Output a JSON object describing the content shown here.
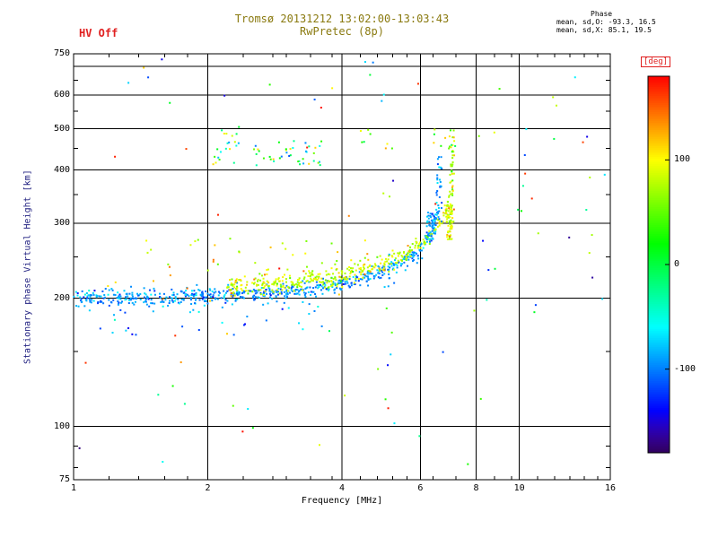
{
  "title": {
    "line1": "Tromsø 20131212 13:02:00-13:03:43",
    "line2": "RwPretec (8p)"
  },
  "hv_status": "HV Off",
  "phase_stats": {
    "header": "Phase",
    "line_o": "mean, sd,O: -93.3, 16.5",
    "line_x": "mean, sd,X:  85.1, 19.5"
  },
  "axes": {
    "x_label": "Frequency [MHz]",
    "y_label": "Stationary phase Virtual Height [km]",
    "x_scale": "log2",
    "y_scale": "log10",
    "x_range": [
      1,
      16
    ],
    "y_range": [
      75,
      750
    ],
    "x_ticks": [
      1,
      2,
      4,
      6,
      8,
      10,
      16
    ],
    "x_grid": [
      2,
      4,
      6,
      8,
      10
    ],
    "x_minor": [
      1.2,
      1.4,
      1.6,
      1.8,
      2.4,
      2.8,
      3,
      3.4,
      3.8,
      4.4,
      4.8,
      5.2,
      5.6,
      6.4,
      7.2,
      8.8,
      9.6,
      11,
      12,
      13,
      14,
      15
    ],
    "y_ticks": [
      750,
      600,
      500,
      400,
      300,
      200,
      100,
      75
    ],
    "y_grid": [
      100,
      200,
      300,
      400,
      500,
      600,
      700
    ],
    "y_minor": [
      80,
      90,
      150,
      250,
      350,
      450,
      550,
      650
    ]
  },
  "colorbar": {
    "label": "[deg]",
    "ticks": [
      100,
      0,
      -100
    ],
    "range": [
      -180,
      180
    ]
  },
  "colors": {
    "title": "#8a7a10",
    "hv": "#e02020",
    "ylabel": "#202080",
    "deg": "#e02020",
    "axis": "#000000",
    "background": "#ffffff"
  },
  "chart_data": {
    "type": "scatter",
    "title": "Tromsø 20131212 13:02:00-13:03:43 / RwPretec (8p)",
    "xlabel": "Frequency [MHz]",
    "ylabel": "Stationary phase Virtual Height [km]",
    "xlim": [
      1,
      16
    ],
    "ylim": [
      75,
      750
    ],
    "color_variable": "phase [deg]",
    "color_range": [
      -180,
      180
    ],
    "seed": 20131212,
    "clusters": [
      {
        "name": "O-trace",
        "type": "band",
        "curve": [
          [
            1.0,
            200
          ],
          [
            1.5,
            201
          ],
          [
            2.0,
            202
          ],
          [
            2.5,
            204
          ],
          [
            3.0,
            207
          ],
          [
            3.5,
            211
          ],
          [
            4.0,
            217
          ],
          [
            4.5,
            224
          ],
          [
            5.0,
            232
          ],
          [
            5.3,
            238
          ],
          [
            5.6,
            246
          ],
          [
            5.9,
            256
          ],
          [
            6.1,
            266
          ],
          [
            6.3,
            280
          ],
          [
            6.45,
            298
          ],
          [
            6.55,
            320
          ],
          [
            6.62,
            350
          ],
          [
            6.67,
            385
          ],
          [
            6.7,
            418
          ]
        ],
        "n": 620,
        "h_sigma": 5,
        "phase": {
          "mean": -93.3,
          "sd": 16.5
        }
      },
      {
        "name": "X-trace",
        "type": "band",
        "curve": [
          [
            2.2,
            213
          ],
          [
            2.8,
            216
          ],
          [
            3.4,
            220
          ],
          [
            4.0,
            226
          ],
          [
            4.5,
            233
          ],
          [
            5.0,
            242
          ],
          [
            5.4,
            251
          ],
          [
            5.8,
            262
          ],
          [
            6.1,
            272
          ],
          [
            6.4,
            285
          ],
          [
            6.6,
            298
          ],
          [
            6.8,
            315
          ],
          [
            6.95,
            340
          ],
          [
            7.05,
            375
          ],
          [
            7.1,
            412
          ]
        ],
        "n": 380,
        "h_sigma": 6,
        "phase": {
          "mean": 85.1,
          "sd": 19.5
        }
      },
      {
        "name": "O-cusp",
        "type": "box",
        "f": [
          6.2,
          6.5
        ],
        "h": [
          270,
          318
        ],
        "n": 50,
        "phase": {
          "mean": -93.3,
          "sd": 18
        }
      },
      {
        "name": "O-asymptote",
        "type": "box",
        "f": [
          6.5,
          6.72
        ],
        "h": [
          300,
          430
        ],
        "n": 30,
        "phase": {
          "mean": -93.3,
          "sd": 20
        }
      },
      {
        "name": "X-cusp",
        "type": "box",
        "f": [
          6.85,
          7.08
        ],
        "h": [
          275,
          332
        ],
        "n": 60,
        "phase": {
          "mean": 85.1,
          "sd": 18
        }
      },
      {
        "name": "X-asymptote",
        "type": "box",
        "f": [
          6.95,
          7.15
        ],
        "h": [
          300,
          505
        ],
        "n": 45,
        "phase": {
          "mean": 85.1,
          "sd": 25
        }
      },
      {
        "name": "second-hop",
        "type": "box",
        "f": [
          2.05,
          3.6
        ],
        "h": [
          408,
          468
        ],
        "n": 55,
        "phase": {
          "uniform": [
            -120,
            120
          ]
        }
      },
      {
        "name": "high-strays-left",
        "type": "box",
        "f": [
          2.1,
          2.5
        ],
        "h": [
          475,
          505
        ],
        "n": 6,
        "phase": {
          "uniform": [
            -60,
            120
          ]
        }
      },
      {
        "name": "high-strays-mid",
        "type": "box",
        "f": [
          4.3,
          4.8
        ],
        "h": [
          465,
          500
        ],
        "n": 5,
        "phase": {
          "uniform": [
            -120,
            120
          ]
        }
      },
      {
        "name": "high-strays-cusp",
        "type": "box",
        "f": [
          6.1,
          7.2
        ],
        "h": [
          430,
          500
        ],
        "n": 10,
        "phase": {
          "uniform": [
            -30,
            120
          ]
        }
      },
      {
        "name": "above-band",
        "type": "box",
        "f": [
          1.4,
          4.6
        ],
        "h": [
          226,
          278
        ],
        "n": 40,
        "phase": {
          "uniform": [
            40,
            150
          ]
        }
      },
      {
        "name": "warm-outliers",
        "type": "box",
        "f": [
          1.2,
          7.0
        ],
        "h": [
          200,
          460
        ],
        "n": 10,
        "phase": {
          "uniform": [
            130,
            180
          ]
        }
      },
      {
        "name": "in-band-warm",
        "type": "box",
        "f": [
          1.1,
          4.0
        ],
        "h": [
          195,
          220
        ],
        "n": 8,
        "phase": {
          "uniform": [
            60,
            170
          ]
        }
      },
      {
        "name": "below-band",
        "type": "box",
        "f": [
          1.0,
          4.2
        ],
        "h": [
          160,
          196
        ],
        "n": 30,
        "phase": {
          "mean": -95,
          "sd": 35
        }
      },
      {
        "name": "low-scatter",
        "type": "box",
        "f": [
          1.0,
          11
        ],
        "h": [
          80,
          170
        ],
        "n": 22,
        "phase": {
          "uniform": [
            -180,
            180
          ]
        }
      },
      {
        "name": "top-scatter",
        "type": "box",
        "f": [
          1.0,
          16
        ],
        "h": [
          560,
          730
        ],
        "n": 20,
        "phase": {
          "uniform": [
            -180,
            180
          ]
        }
      },
      {
        "name": "right-scatter",
        "type": "box",
        "f": [
          7.5,
          16
        ],
        "h": [
          180,
          520
        ],
        "n": 28,
        "phase": {
          "uniform": [
            -180,
            180
          ]
        }
      },
      {
        "name": "column-5mhz",
        "type": "box",
        "f": [
          4.95,
          5.25
        ],
        "h": [
          95,
          520
        ],
        "n": 16,
        "phase": {
          "uniform": [
            -180,
            180
          ]
        }
      }
    ]
  }
}
